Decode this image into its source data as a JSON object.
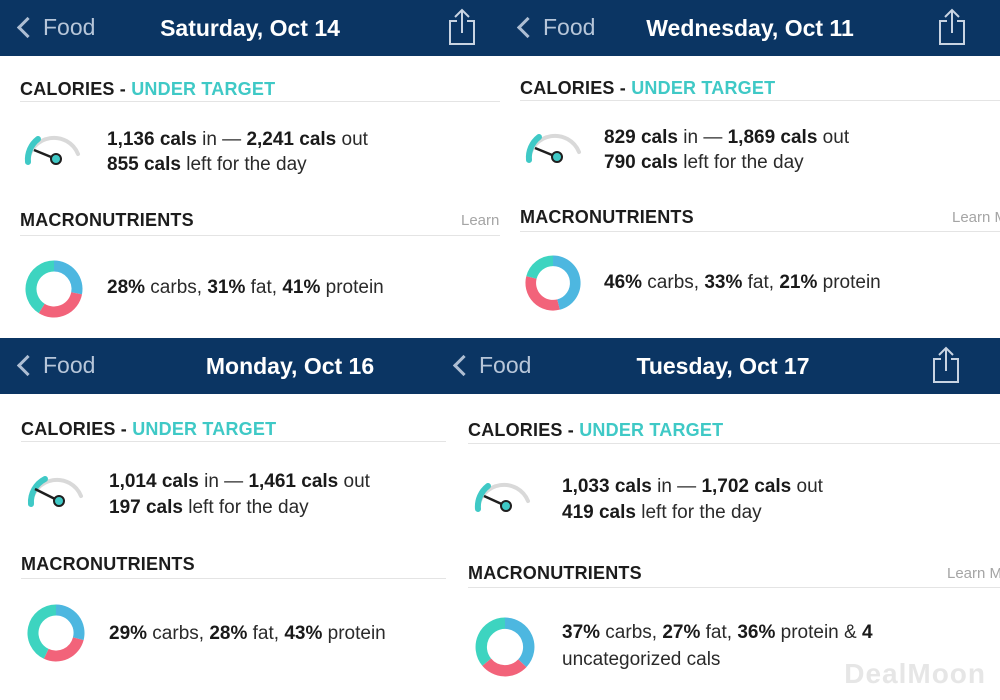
{
  "back_label": "Food",
  "section_calories": "CALORIES",
  "separator": " - ",
  "calories_status": "UNDER TARGET",
  "section_macros": "MACRONUTRIENTS",
  "learn_more": "Learn More",
  "colors": {
    "header_bg": "#0b3563",
    "accent_teal": "#3fc9c6",
    "carbs": "#4db7e0",
    "fat": "#f2637a",
    "protein": "#3dd4c0",
    "gauge_track": "#d9d9d9"
  },
  "watermark": "DealMoon",
  "screens": [
    {
      "title": "Saturday, Oct 14",
      "cals_in": "1,136 cals",
      "in_word": " in — ",
      "cals_out": "2,241 cals",
      "out_word": " out",
      "cals_left": "855 cals",
      "left_word": " left for the day",
      "carbs_pct": "28%",
      "carbs_word": " carbs, ",
      "fat_pct": "31%",
      "fat_word": " fat, ",
      "protein_pct": "41%",
      "protein_word": " protein",
      "macros": {
        "carbs": 28,
        "fat": 31,
        "protein": 41
      }
    },
    {
      "title": "Wednesday, Oct 11",
      "cals_in": "829 cals",
      "in_word": " in — ",
      "cals_out": "1,869 cals",
      "out_word": " out",
      "cals_left": "790 cals",
      "left_word": " left for the day",
      "carbs_pct": "46%",
      "carbs_word": " carbs, ",
      "fat_pct": "33%",
      "fat_word": " fat, ",
      "protein_pct": "21%",
      "protein_word": " protein",
      "macros": {
        "carbs": 46,
        "fat": 33,
        "protein": 21
      }
    },
    {
      "title": "Monday, Oct 16",
      "cals_in": "1,014 cals",
      "in_word": " in — ",
      "cals_out": "1,461 cals",
      "out_word": " out",
      "cals_left": "197 cals",
      "left_word": " left for the day",
      "carbs_pct": "29%",
      "carbs_word": " carbs, ",
      "fat_pct": "28%",
      "fat_word": " fat, ",
      "protein_pct": "43%",
      "protein_word": " protein",
      "macros": {
        "carbs": 29,
        "fat": 28,
        "protein": 43
      }
    },
    {
      "title": "Tuesday, Oct 17",
      "cals_in": "1,033 cals",
      "in_word": " in — ",
      "cals_out": "1,702 cals",
      "out_word": " out",
      "cals_left": "419 cals",
      "left_word": " left for the day",
      "carbs_pct": "37%",
      "carbs_word": " carbs, ",
      "fat_pct": "27%",
      "fat_word": " fat, ",
      "protein_pct": "36%",
      "protein_word": " protein & ",
      "uncat_count": "4",
      "uncat_word": "uncategorized cals",
      "macros": {
        "carbs": 37,
        "fat": 27,
        "protein": 36
      }
    }
  ]
}
